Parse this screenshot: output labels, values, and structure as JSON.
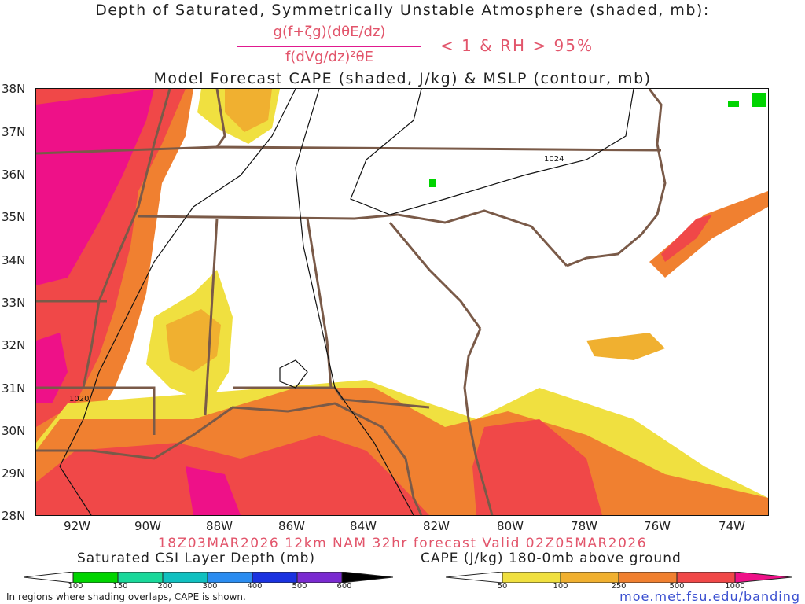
{
  "title": {
    "line1": "Depth of Saturated, Symmetrically Unstable Atmosphere (shaded, mb):",
    "numerator": "g(f+ζg)(dθE/dz)",
    "denominator": "f(dVg/dz)²θE",
    "condition": "< 1 & RH > 95%",
    "line2": "Model Forecast CAPE (shaded, J/kg) & MSLP (contour, mb)"
  },
  "map": {
    "lat_labels": [
      "38N",
      "37N",
      "36N",
      "35N",
      "34N",
      "33N",
      "32N",
      "31N",
      "30N",
      "29N",
      "28N"
    ],
    "lon_labels": [
      "92W",
      "90W",
      "88W",
      "86W",
      "84W",
      "82W",
      "80W",
      "78W",
      "76W",
      "74W"
    ],
    "contour_labels": [
      "1024",
      "1020"
    ]
  },
  "valid": "18Z03MAR2026 12km NAM 32hr forecast Valid 02Z05MAR2026",
  "csi_legend": {
    "title": "Saturated CSI Layer Depth (mb)",
    "ticks": [
      "100",
      "150",
      "200",
      "300",
      "400",
      "500",
      "600"
    ],
    "colors": [
      "#00d400",
      "#19d89a",
      "#10c0c0",
      "#2a8cf0",
      "#1a32e0",
      "#7a2ad0",
      "#000000"
    ]
  },
  "cape_legend": {
    "title": "CAPE (J/kg) 180-0mb above ground",
    "ticks": [
      "50",
      "100",
      "250",
      "500",
      "1000"
    ],
    "colors": [
      "#f0e040",
      "#f0b030",
      "#f08030",
      "#f04848",
      "#ee1188"
    ]
  },
  "footer": {
    "note": "In regions where shading overlaps, CAPE is shown.",
    "url": "moe.met.fsu.edu/banding"
  }
}
